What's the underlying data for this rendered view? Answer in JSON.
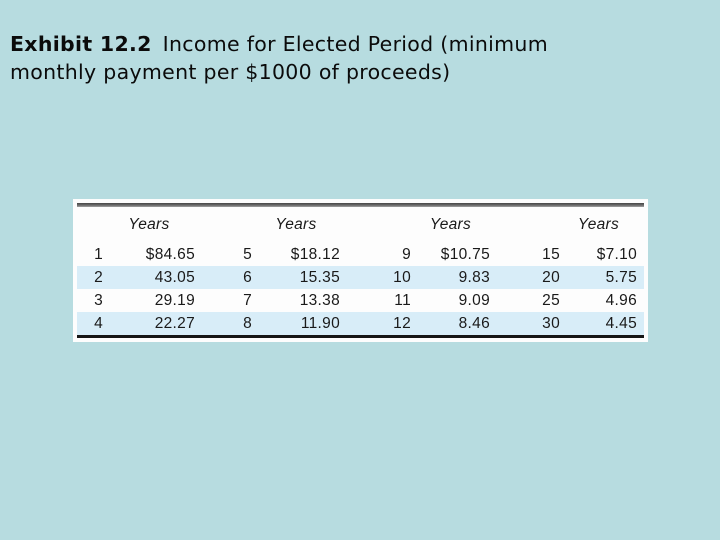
{
  "slide": {
    "title": {
      "lead": "Exhibit 12.2",
      "line1": "Income for Elected Period (minimum",
      "line2": "monthly payment per $1000 of proceeds)"
    }
  },
  "colors": {
    "slide_background": "#b7dce0",
    "panel_background": "#fdfdfd",
    "row_stripe": "#d8edf8",
    "top_rule_gray": "#6b6b6b",
    "bottom_rule_black": "#161616",
    "text": "#1a1a1a"
  },
  "table": {
    "column_headers": [
      "Years",
      "Years",
      "Years",
      "Years"
    ],
    "rows": [
      [
        "1",
        "$84.65",
        "5",
        "$18.12",
        "9",
        "$10.75",
        "15",
        "$7.10"
      ],
      [
        "2",
        "43.05",
        "6",
        "15.35",
        "10",
        "9.83",
        "20",
        "5.75"
      ],
      [
        "3",
        "29.19",
        "7",
        "13.38",
        "11",
        "9.09",
        "25",
        "4.96"
      ],
      [
        "4",
        "22.27",
        "8",
        "11.90",
        "12",
        "8.46",
        "30",
        "4.45"
      ]
    ]
  }
}
